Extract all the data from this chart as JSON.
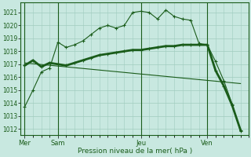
{
  "bg_color": "#c8e8e0",
  "grid_color": "#a0ccbe",
  "line_color": "#1a5c1a",
  "title": "Pression niveau de la mer( hPa )",
  "yticks": [
    1012,
    1013,
    1014,
    1015,
    1016,
    1017,
    1018,
    1019,
    1020,
    1021
  ],
  "ylim": [
    1011.5,
    1021.8
  ],
  "day_labels": [
    "Mer",
    "Sam",
    "Jeu",
    "Ven"
  ],
  "day_positions": [
    0,
    4,
    14,
    22
  ],
  "xlim": [
    -0.5,
    27
  ],
  "line1_x": [
    0,
    1,
    2,
    3,
    4,
    5,
    6,
    7,
    8,
    9,
    10,
    11,
    12,
    13,
    14,
    15,
    16,
    17,
    18,
    19,
    20,
    21,
    22,
    23,
    24,
    25,
    26
  ],
  "line1_y": [
    1013.7,
    1015.0,
    1016.4,
    1016.7,
    1018.7,
    1018.3,
    1018.5,
    1018.8,
    1019.3,
    1019.8,
    1020.0,
    1019.8,
    1020.0,
    1021.0,
    1021.1,
    1021.0,
    1020.5,
    1021.2,
    1020.7,
    1020.5,
    1020.4,
    1018.6,
    1018.5,
    1017.2,
    1015.7,
    1013.9,
    1011.8
  ],
  "line2_x": [
    0,
    1,
    2,
    3,
    4,
    5,
    6,
    7,
    8,
    9,
    10,
    11,
    12,
    13,
    14,
    15,
    16,
    17,
    18,
    19,
    20,
    21,
    22,
    23,
    24,
    25,
    26
  ],
  "line2_y": [
    1016.9,
    1017.3,
    1016.8,
    1017.1,
    1017.0,
    1016.9,
    1017.1,
    1017.3,
    1017.5,
    1017.7,
    1017.8,
    1017.9,
    1018.0,
    1018.1,
    1018.1,
    1018.2,
    1018.3,
    1018.4,
    1018.4,
    1018.5,
    1018.5,
    1018.5,
    1018.5,
    1016.5,
    1015.3,
    1013.8,
    1011.9
  ],
  "line3_x": [
    0,
    26
  ],
  "line3_y": [
    1017.1,
    1015.5
  ],
  "vline_positions": [
    0,
    4,
    14,
    22
  ]
}
